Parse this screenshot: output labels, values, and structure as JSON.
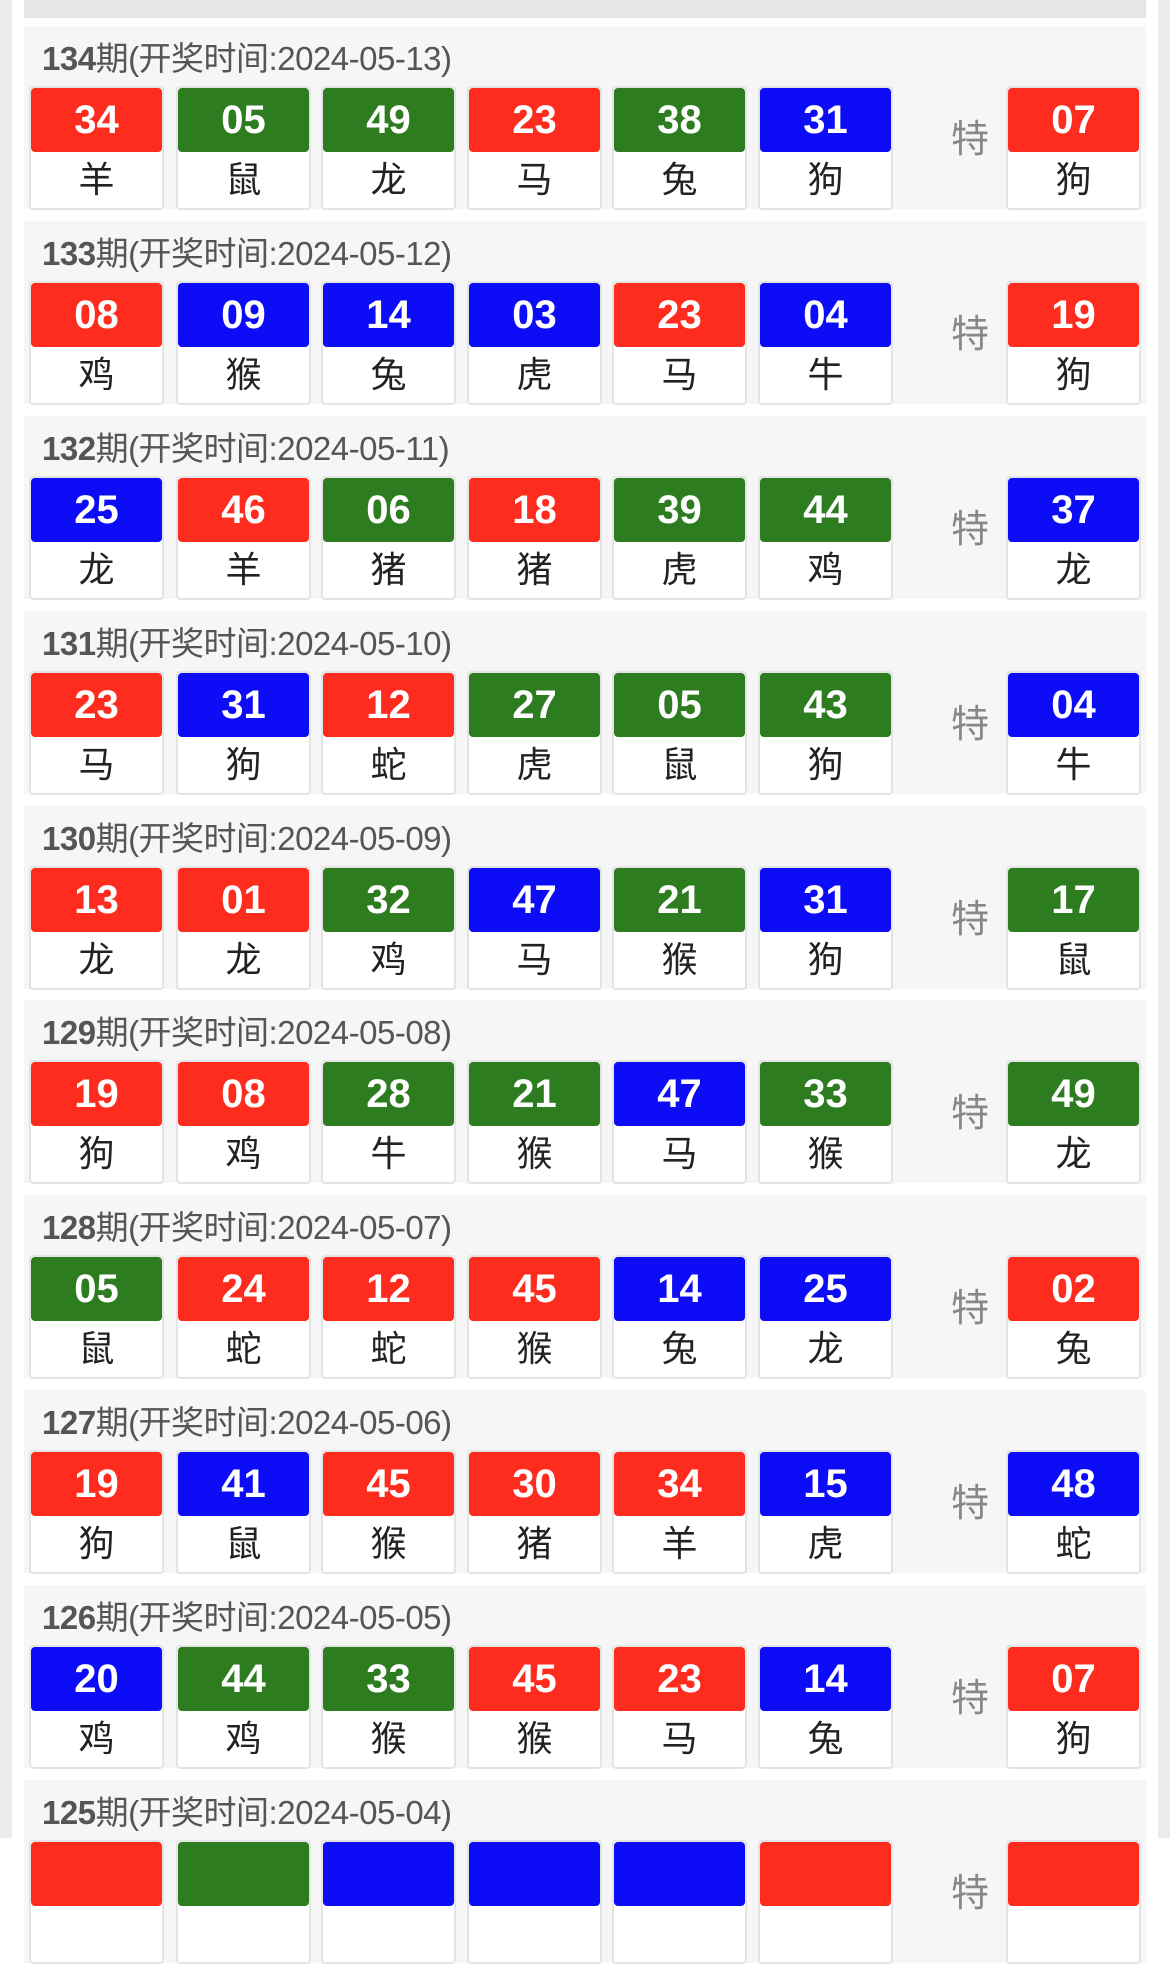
{
  "special_label": "特",
  "colors": {
    "red": "#fe2c1e",
    "green": "#2d7d20",
    "blue": "#0c0cf7"
  },
  "draws": [
    {
      "period": "134",
      "title_rest": "期(开奖时间:2024-05-13)",
      "balls": [
        {
          "n": "34",
          "z": "羊",
          "c": "red"
        },
        {
          "n": "05",
          "z": "鼠",
          "c": "green"
        },
        {
          "n": "49",
          "z": "龙",
          "c": "green"
        },
        {
          "n": "23",
          "z": "马",
          "c": "red"
        },
        {
          "n": "38",
          "z": "兔",
          "c": "green"
        },
        {
          "n": "31",
          "z": "狗",
          "c": "blue"
        }
      ],
      "special": {
        "n": "07",
        "z": "狗",
        "c": "red"
      }
    },
    {
      "period": "133",
      "title_rest": "期(开奖时间:2024-05-12)",
      "balls": [
        {
          "n": "08",
          "z": "鸡",
          "c": "red"
        },
        {
          "n": "09",
          "z": "猴",
          "c": "blue"
        },
        {
          "n": "14",
          "z": "兔",
          "c": "blue"
        },
        {
          "n": "03",
          "z": "虎",
          "c": "blue"
        },
        {
          "n": "23",
          "z": "马",
          "c": "red"
        },
        {
          "n": "04",
          "z": "牛",
          "c": "blue"
        }
      ],
      "special": {
        "n": "19",
        "z": "狗",
        "c": "red"
      }
    },
    {
      "period": "132",
      "title_rest": "期(开奖时间:2024-05-11)",
      "balls": [
        {
          "n": "25",
          "z": "龙",
          "c": "blue"
        },
        {
          "n": "46",
          "z": "羊",
          "c": "red"
        },
        {
          "n": "06",
          "z": "猪",
          "c": "green"
        },
        {
          "n": "18",
          "z": "猪",
          "c": "red"
        },
        {
          "n": "39",
          "z": "虎",
          "c": "green"
        },
        {
          "n": "44",
          "z": "鸡",
          "c": "green"
        }
      ],
      "special": {
        "n": "37",
        "z": "龙",
        "c": "blue"
      }
    },
    {
      "period": "131",
      "title_rest": "期(开奖时间:2024-05-10)",
      "balls": [
        {
          "n": "23",
          "z": "马",
          "c": "red"
        },
        {
          "n": "31",
          "z": "狗",
          "c": "blue"
        },
        {
          "n": "12",
          "z": "蛇",
          "c": "red"
        },
        {
          "n": "27",
          "z": "虎",
          "c": "green"
        },
        {
          "n": "05",
          "z": "鼠",
          "c": "green"
        },
        {
          "n": "43",
          "z": "狗",
          "c": "green"
        }
      ],
      "special": {
        "n": "04",
        "z": "牛",
        "c": "blue"
      }
    },
    {
      "period": "130",
      "title_rest": "期(开奖时间:2024-05-09)",
      "balls": [
        {
          "n": "13",
          "z": "龙",
          "c": "red"
        },
        {
          "n": "01",
          "z": "龙",
          "c": "red"
        },
        {
          "n": "32",
          "z": "鸡",
          "c": "green"
        },
        {
          "n": "47",
          "z": "马",
          "c": "blue"
        },
        {
          "n": "21",
          "z": "猴",
          "c": "green"
        },
        {
          "n": "31",
          "z": "狗",
          "c": "blue"
        }
      ],
      "special": {
        "n": "17",
        "z": "鼠",
        "c": "green"
      }
    },
    {
      "period": "129",
      "title_rest": "期(开奖时间:2024-05-08)",
      "balls": [
        {
          "n": "19",
          "z": "狗",
          "c": "red"
        },
        {
          "n": "08",
          "z": "鸡",
          "c": "red"
        },
        {
          "n": "28",
          "z": "牛",
          "c": "green"
        },
        {
          "n": "21",
          "z": "猴",
          "c": "green"
        },
        {
          "n": "47",
          "z": "马",
          "c": "blue"
        },
        {
          "n": "33",
          "z": "猴",
          "c": "green"
        }
      ],
      "special": {
        "n": "49",
        "z": "龙",
        "c": "green"
      }
    },
    {
      "period": "128",
      "title_rest": "期(开奖时间:2024-05-07)",
      "balls": [
        {
          "n": "05",
          "z": "鼠",
          "c": "green"
        },
        {
          "n": "24",
          "z": "蛇",
          "c": "red"
        },
        {
          "n": "12",
          "z": "蛇",
          "c": "red"
        },
        {
          "n": "45",
          "z": "猴",
          "c": "red"
        },
        {
          "n": "14",
          "z": "兔",
          "c": "blue"
        },
        {
          "n": "25",
          "z": "龙",
          "c": "blue"
        }
      ],
      "special": {
        "n": "02",
        "z": "兔",
        "c": "red"
      }
    },
    {
      "period": "127",
      "title_rest": "期(开奖时间:2024-05-06)",
      "balls": [
        {
          "n": "19",
          "z": "狗",
          "c": "red"
        },
        {
          "n": "41",
          "z": "鼠",
          "c": "blue"
        },
        {
          "n": "45",
          "z": "猴",
          "c": "red"
        },
        {
          "n": "30",
          "z": "猪",
          "c": "red"
        },
        {
          "n": "34",
          "z": "羊",
          "c": "red"
        },
        {
          "n": "15",
          "z": "虎",
          "c": "blue"
        }
      ],
      "special": {
        "n": "48",
        "z": "蛇",
        "c": "blue"
      }
    },
    {
      "period": "126",
      "title_rest": "期(开奖时间:2024-05-05)",
      "balls": [
        {
          "n": "20",
          "z": "鸡",
          "c": "blue"
        },
        {
          "n": "44",
          "z": "鸡",
          "c": "green"
        },
        {
          "n": "33",
          "z": "猴",
          "c": "green"
        },
        {
          "n": "45",
          "z": "猴",
          "c": "red"
        },
        {
          "n": "23",
          "z": "马",
          "c": "red"
        },
        {
          "n": "14",
          "z": "兔",
          "c": "blue"
        }
      ],
      "special": {
        "n": "07",
        "z": "狗",
        "c": "red"
      }
    },
    {
      "period": "125",
      "title_rest": "期(开奖时间:2024-05-04)",
      "balls": [
        {
          "n": "",
          "z": "",
          "c": "red"
        },
        {
          "n": "",
          "z": "",
          "c": "green"
        },
        {
          "n": "",
          "z": "",
          "c": "blue"
        },
        {
          "n": "",
          "z": "",
          "c": "blue"
        },
        {
          "n": "",
          "z": "",
          "c": "blue"
        },
        {
          "n": "",
          "z": "",
          "c": "red"
        }
      ],
      "special": {
        "n": "",
        "z": "",
        "c": "red"
      }
    }
  ]
}
